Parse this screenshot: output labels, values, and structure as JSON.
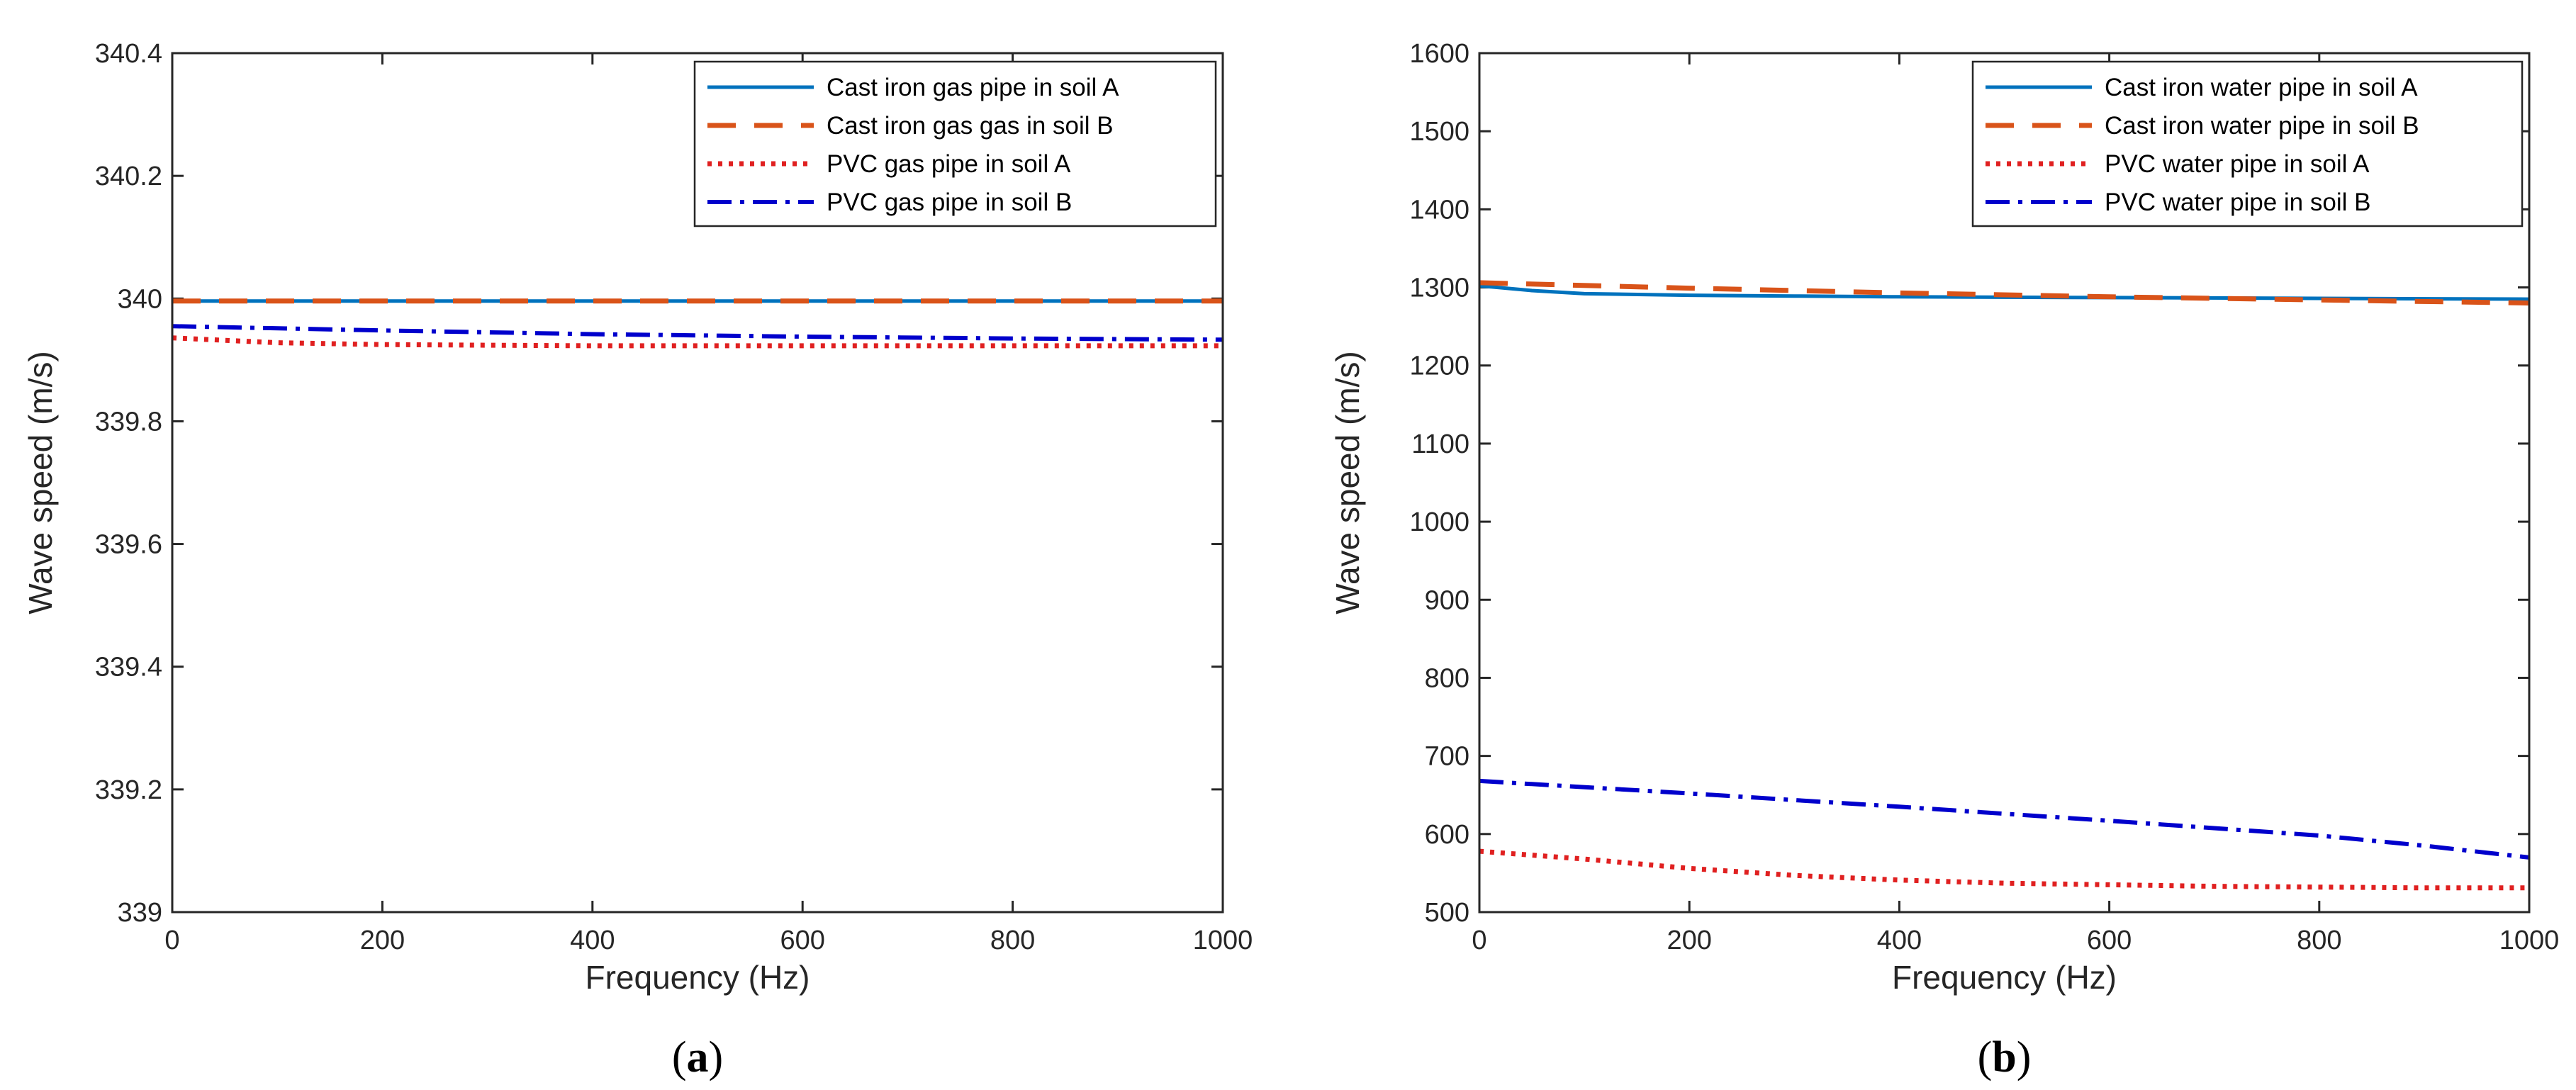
{
  "chart_data": [
    {
      "type": "line",
      "panel_label_open": "(",
      "panel_label_letter": "a",
      "panel_label_close": ")",
      "xlabel": "Frequency (Hz)",
      "ylabel": "Wave speed (m/s)",
      "xlim": [
        0,
        1000
      ],
      "ylim": [
        339,
        340.4
      ],
      "xticks": [
        0,
        200,
        400,
        600,
        800,
        1000
      ],
      "xtick_labels": [
        "0",
        "200",
        "400",
        "600",
        "800",
        "1000"
      ],
      "yticks": [
        339,
        339.2,
        339.4,
        339.6,
        339.8,
        340,
        340.2,
        340.4
      ],
      "ytick_labels": [
        "339",
        "339.2",
        "339.4",
        "339.6",
        "339.8",
        "340",
        "340.2",
        "340.4"
      ],
      "legend_position": "top-right",
      "series": [
        {
          "name": "Cast iron gas pipe in soil A",
          "color": "#0072BD",
          "style": "solid",
          "x": [
            0,
            200,
            400,
            600,
            800,
            1000
          ],
          "y": [
            339.996,
            339.996,
            339.996,
            339.996,
            339.996,
            339.996
          ]
        },
        {
          "name": "Cast iron gas gas in soil B",
          "color": "#D95319",
          "style": "dashed",
          "x": [
            0,
            200,
            400,
            600,
            800,
            1000
          ],
          "y": [
            339.996,
            339.996,
            339.996,
            339.996,
            339.996,
            339.996
          ]
        },
        {
          "name": "PVC gas pipe in soil A",
          "color": "#E02020",
          "style": "dotted",
          "x": [
            0,
            50,
            100,
            200,
            300,
            400,
            600,
            800,
            1000
          ],
          "y": [
            339.936,
            339.932,
            339.928,
            339.925,
            339.924,
            339.923,
            339.923,
            339.923,
            339.923
          ]
        },
        {
          "name": "PVC gas pipe in soil B",
          "color": "#0000CC",
          "style": "dashdot",
          "x": [
            0,
            200,
            400,
            600,
            800,
            1000
          ],
          "y": [
            339.955,
            339.948,
            339.942,
            339.938,
            339.935,
            339.933
          ]
        }
      ]
    },
    {
      "type": "line",
      "panel_label_open": "(",
      "panel_label_letter": "b",
      "panel_label_close": ")",
      "xlabel": "Frequency (Hz)",
      "ylabel": "Wave speed (m/s)",
      "xlim": [
        0,
        1000
      ],
      "ylim": [
        500,
        1600
      ],
      "xticks": [
        0,
        200,
        400,
        600,
        800,
        1000
      ],
      "xtick_labels": [
        "0",
        "200",
        "400",
        "600",
        "800",
        "1000"
      ],
      "yticks": [
        500,
        600,
        700,
        800,
        900,
        1000,
        1100,
        1200,
        1300,
        1400,
        1500,
        1600
      ],
      "ytick_labels": [
        "500",
        "600",
        "700",
        "800",
        "900",
        "1000",
        "1100",
        "1200",
        "1300",
        "1400",
        "1500",
        "1600"
      ],
      "legend_position": "top-right",
      "series": [
        {
          "name": "Cast iron water pipe in soil A",
          "color": "#0072BD",
          "style": "solid",
          "x": [
            0,
            50,
            100,
            200,
            300,
            400,
            600,
            800,
            1000
          ],
          "y": [
            1302,
            1296,
            1292,
            1290,
            1289,
            1288,
            1287,
            1286,
            1285
          ]
        },
        {
          "name": "Cast iron water pipe in soil B",
          "color": "#D95319",
          "style": "dashed",
          "x": [
            0,
            200,
            400,
            600,
            800,
            1000
          ],
          "y": [
            1306,
            1299,
            1293,
            1288,
            1284,
            1280
          ]
        },
        {
          "name": "PVC water pipe in soil A",
          "color": "#E02020",
          "style": "dotted",
          "x": [
            0,
            100,
            200,
            300,
            400,
            500,
            600,
            700,
            800,
            900,
            1000
          ],
          "y": [
            578,
            568,
            556,
            547,
            541,
            537,
            535,
            533,
            532,
            531,
            531
          ]
        },
        {
          "name": "PVC water pipe in soil B",
          "color": "#0000CC",
          "style": "dashdot",
          "x": [
            0,
            200,
            400,
            600,
            800,
            900,
            1000
          ],
          "y": [
            668,
            652,
            635,
            617,
            598,
            585,
            570
          ]
        }
      ]
    }
  ]
}
